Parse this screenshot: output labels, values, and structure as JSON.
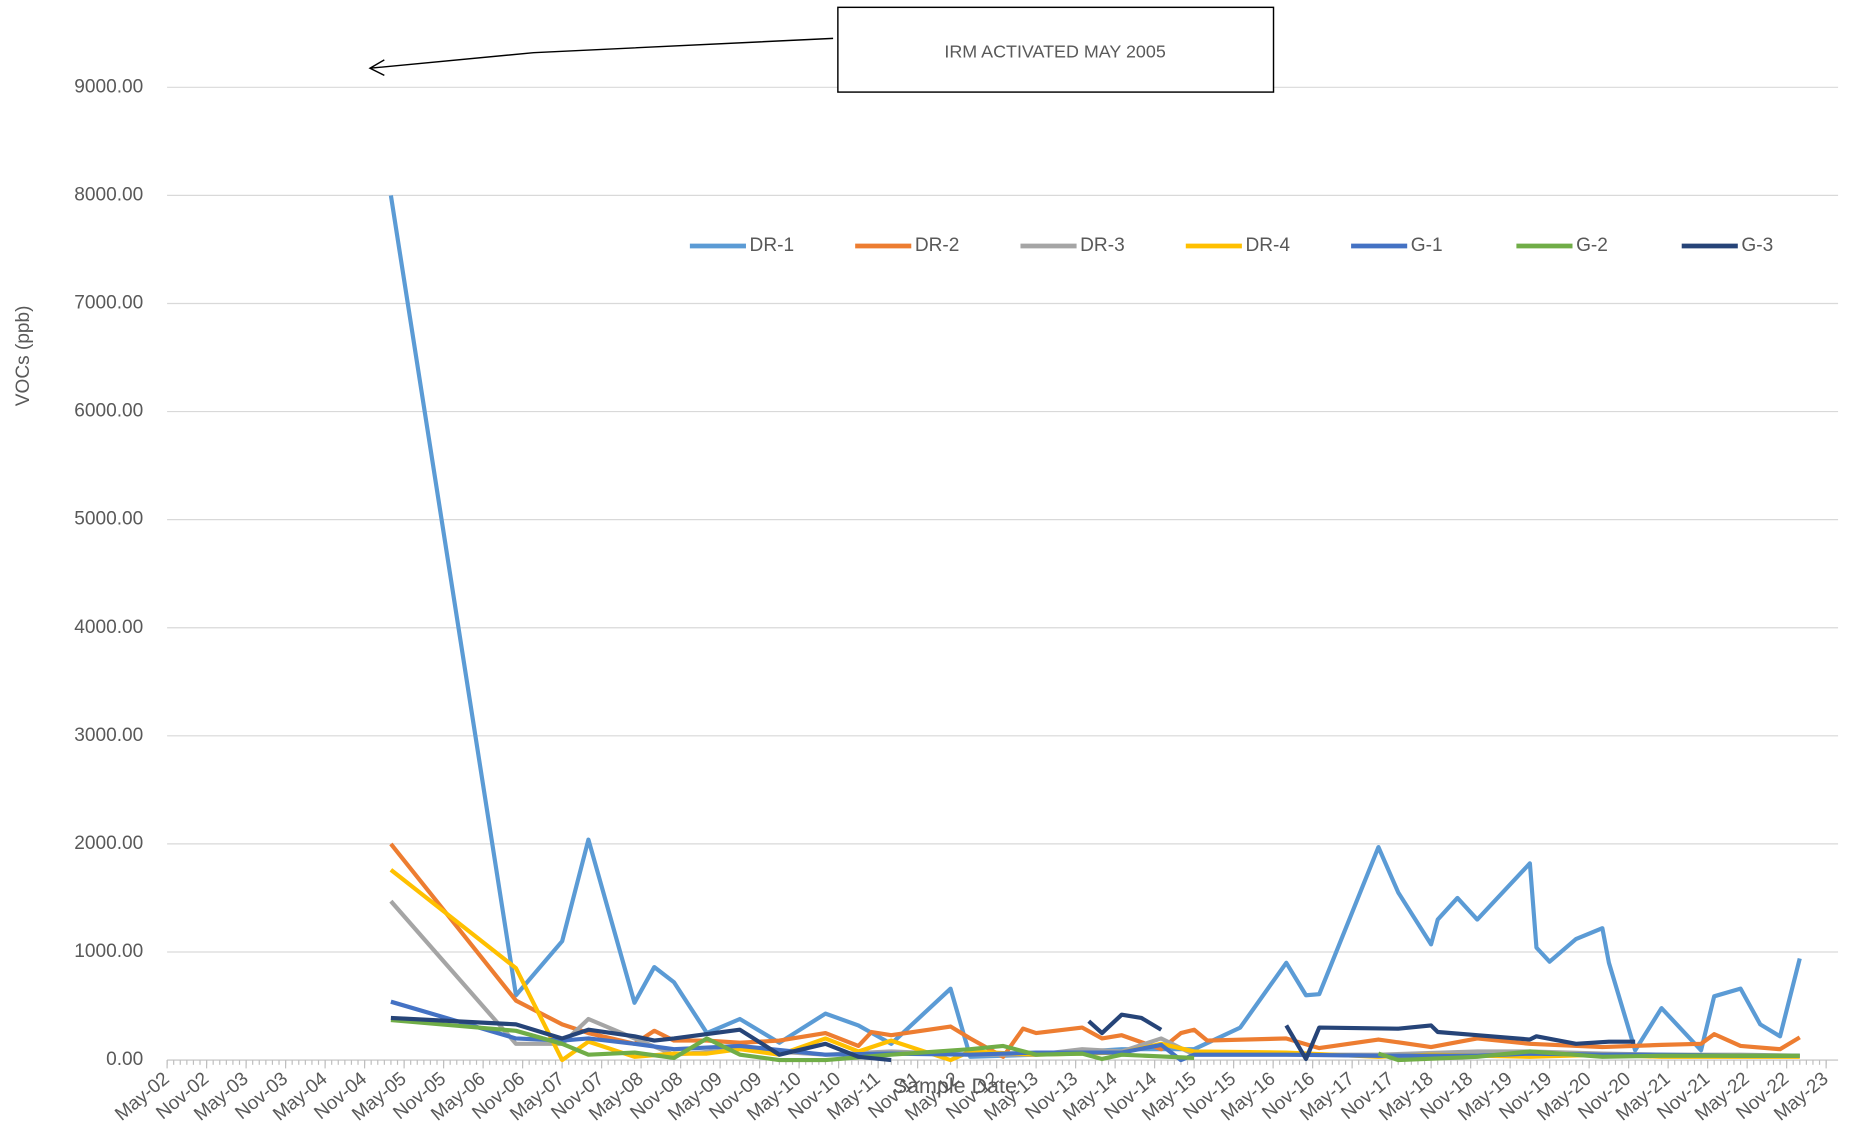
{
  "chart_data": {
    "type": "line",
    "annotation": "IRM ACTIVATED MAY 2005",
    "x_label": "Sample Date",
    "y_label": "VOCs (ppb)",
    "ylim": [
      0,
      9000
    ],
    "yticks": [
      {
        "value": 0,
        "label": "0.00"
      },
      {
        "value": 1000,
        "label": "1000.00"
      },
      {
        "value": 2000,
        "label": "2000.00"
      },
      {
        "value": 3000,
        "label": "3000.00"
      },
      {
        "value": 4000,
        "label": "4000.00"
      },
      {
        "value": 5000,
        "label": "5000.00"
      },
      {
        "value": 6000,
        "label": "6000.00"
      },
      {
        "value": 7000,
        "label": "7000.00"
      },
      {
        "value": 8000,
        "label": "8000.00"
      },
      {
        "value": 9000,
        "label": "9000.00"
      }
    ],
    "xlim": [
      "2002-05",
      "2023-05"
    ],
    "xticks": [
      {
        "value": "2002-05",
        "label": "May-02"
      },
      {
        "value": "2002-11",
        "label": "Nov-02"
      },
      {
        "value": "2003-05",
        "label": "May-03"
      },
      {
        "value": "2003-11",
        "label": "Nov-03"
      },
      {
        "value": "2004-05",
        "label": "May-04"
      },
      {
        "value": "2004-11",
        "label": "Nov-04"
      },
      {
        "value": "2005-05",
        "label": "May-05"
      },
      {
        "value": "2005-11",
        "label": "Nov-05"
      },
      {
        "value": "2006-05",
        "label": "May-06"
      },
      {
        "value": "2006-11",
        "label": "Nov-06"
      },
      {
        "value": "2007-05",
        "label": "May-07"
      },
      {
        "value": "2007-11",
        "label": "Nov-07"
      },
      {
        "value": "2008-05",
        "label": "May-08"
      },
      {
        "value": "2008-11",
        "label": "Nov-08"
      },
      {
        "value": "2009-05",
        "label": "May-09"
      },
      {
        "value": "2009-11",
        "label": "Nov-09"
      },
      {
        "value": "2010-05",
        "label": "May-10"
      },
      {
        "value": "2010-11",
        "label": "Nov-10"
      },
      {
        "value": "2011-05",
        "label": "May-11"
      },
      {
        "value": "2011-11",
        "label": "Nov-11"
      },
      {
        "value": "2012-05",
        "label": "May-12"
      },
      {
        "value": "2012-11",
        "label": "Nov-12"
      },
      {
        "value": "2013-05",
        "label": "May-13"
      },
      {
        "value": "2013-11",
        "label": "Nov-13"
      },
      {
        "value": "2014-05",
        "label": "May-14"
      },
      {
        "value": "2014-11",
        "label": "Nov-14"
      },
      {
        "value": "2015-05",
        "label": "May-15"
      },
      {
        "value": "2015-11",
        "label": "Nov-15"
      },
      {
        "value": "2016-05",
        "label": "May-16"
      },
      {
        "value": "2016-11",
        "label": "Nov-16"
      },
      {
        "value": "2017-05",
        "label": "May-17"
      },
      {
        "value": "2017-11",
        "label": "Nov-17"
      },
      {
        "value": "2018-05",
        "label": "May-18"
      },
      {
        "value": "2018-11",
        "label": "Nov-18"
      },
      {
        "value": "2019-05",
        "label": "May-19"
      },
      {
        "value": "2019-11",
        "label": "Nov-19"
      },
      {
        "value": "2020-05",
        "label": "May-20"
      },
      {
        "value": "2020-11",
        "label": "Nov-20"
      },
      {
        "value": "2021-05",
        "label": "May-21"
      },
      {
        "value": "2021-11",
        "label": "Nov-21"
      },
      {
        "value": "2022-05",
        "label": "May-22"
      },
      {
        "value": "2022-11",
        "label": "Nov-22"
      },
      {
        "value": "2023-05",
        "label": "May-23"
      }
    ],
    "grid": true,
    "legend": "top",
    "series": [
      {
        "name": "DR-1",
        "color": "#5b9bd5",
        "x": [
          "2005-03",
          "2006-10",
          "2007-05",
          "2007-09",
          "2008-04",
          "2008-07",
          "2008-10",
          "2009-03",
          "2009-08",
          "2010-02",
          "2010-09",
          "2011-02",
          "2011-07",
          "2012-04",
          "2012-07",
          "2013-05",
          "2014-06",
          "2015-05",
          "2015-12",
          "2016-07",
          "2016-10",
          "2016-12",
          "2017-09",
          "2017-12",
          "2018-05",
          "2018-06",
          "2018-09",
          "2018-12",
          "2019-08",
          "2019-09",
          "2019-11",
          "2020-03",
          "2020-07",
          "2020-08",
          "2020-12",
          "2021-04",
          "2021-10",
          "2021-12",
          "2022-04",
          "2022-07",
          "2022-10",
          "2023-01"
        ],
        "values": [
          8000,
          600,
          1100,
          2040,
          530,
          860,
          720,
          250,
          380,
          160,
          430,
          320,
          150,
          660,
          30,
          50,
          100,
          100,
          300,
          900,
          600,
          610,
          1970,
          1550,
          1070,
          1300,
          1500,
          1300,
          1820,
          1040,
          910,
          1120,
          1220,
          900,
          90,
          480,
          90,
          590,
          660,
          330,
          220,
          940
        ]
      },
      {
        "name": "DR-2",
        "color": "#ed7d31",
        "x": [
          "2005-03",
          "2006-10",
          "2007-05",
          "2007-09",
          "2008-04",
          "2008-07",
          "2008-10",
          "2009-03",
          "2009-08",
          "2010-02",
          "2010-09",
          "2011-02",
          "2011-04",
          "2011-07",
          "2012-04",
          "2012-07",
          "2012-12",
          "2013-03",
          "2013-05",
          "2013-12",
          "2014-03",
          "2014-06",
          "2014-12",
          "2015-03",
          "2015-05",
          "2015-07",
          "2016-07",
          "2016-12",
          "2017-09",
          "2018-05",
          "2018-12",
          "2019-08",
          "2020-07",
          "2021-04",
          "2021-10",
          "2021-12",
          "2022-04",
          "2022-10",
          "2023-01"
        ],
        "values": [
          2000,
          550,
          330,
          250,
          150,
          270,
          180,
          180,
          160,
          180,
          250,
          130,
          260,
          230,
          310,
          200,
          30,
          290,
          250,
          300,
          200,
          230,
          100,
          250,
          280,
          180,
          200,
          110,
          190,
          120,
          200,
          150,
          120,
          140,
          150,
          240,
          130,
          100,
          210
        ]
      },
      {
        "name": "DR-3",
        "color": "#a5a5a5",
        "x": [
          "2005-03",
          "2006-10",
          "2007-05",
          "2007-09",
          "2008-04",
          "2008-10",
          "2009-08",
          "2010-09",
          "2011-07",
          "2012-07",
          "2013-05",
          "2013-12",
          "2014-06",
          "2014-12",
          "2015-05",
          "2016-07",
          "2017-09",
          "2018-12",
          "2019-08",
          "2020-07",
          "2021-04",
          "2022-04",
          "2023-01"
        ],
        "values": [
          1470,
          150,
          150,
          380,
          200,
          50,
          100,
          50,
          80,
          50,
          50,
          100,
          80,
          200,
          50,
          50,
          50,
          80,
          80,
          60,
          50,
          50,
          40
        ]
      },
      {
        "name": "DR-4",
        "color": "#ffc000",
        "x": [
          "2005-03",
          "2006-10",
          "2007-05",
          "2007-09",
          "2008-04",
          "2008-10",
          "2009-03",
          "2009-08",
          "2010-02",
          "2010-09",
          "2011-02",
          "2011-07",
          "2012-04",
          "2012-07",
          "2013-05",
          "2014-06",
          "2014-12",
          "2015-05",
          "2016-07",
          "2017-09",
          "2018-05",
          "2019-08",
          "2020-07",
          "2021-04",
          "2022-04",
          "2023-01"
        ],
        "values": [
          1760,
          850,
          0,
          170,
          30,
          60,
          60,
          100,
          50,
          200,
          80,
          180,
          0,
          80,
          50,
          70,
          150,
          80,
          70,
          30,
          50,
          30,
          50,
          30,
          30,
          30
        ]
      },
      {
        "name": "G-1",
        "color": "#4472c4",
        "x": [
          "2005-03",
          "2006-10",
          "2007-05",
          "2007-09",
          "2008-04",
          "2008-10",
          "2009-08",
          "2010-09",
          "2011-07",
          "2012-07",
          "2013-05",
          "2014-06",
          "2014-12",
          "2015-03",
          "2015-05",
          "2016-07",
          "2017-09",
          "2018-12",
          "2019-08",
          "2020-07",
          "2021-04",
          "2022-04",
          "2023-01"
        ],
        "values": [
          540,
          200,
          180,
          200,
          150,
          100,
          130,
          50,
          60,
          50,
          70,
          70,
          140,
          0,
          50,
          50,
          40,
          40,
          60,
          50,
          50,
          40,
          40
        ]
      },
      {
        "name": "G-2",
        "color": "#70ad47",
        "x": [
          "2005-03",
          "2006-10",
          "2007-05",
          "2007-09",
          "2008-04",
          "2008-10",
          "2009-03",
          "2009-08",
          "2010-02",
          "2010-09",
          "2011-07",
          "2012-07",
          "2012-12",
          "2013-05",
          "2013-12",
          "2014-03",
          "2014-06",
          "2015-05",
          "2016-07",
          "2017-09",
          "2017-12",
          "2018-12",
          "2019-08",
          "2020-07",
          "2021-04",
          "2022-04",
          "2023-01"
        ],
        "values": [
          370,
          270,
          150,
          50,
          70,
          20,
          200,
          50,
          0,
          0,
          50,
          100,
          130,
          50,
          60,
          10,
          50,
          20,
          null,
          60,
          0,
          30,
          80,
          30,
          40,
          40,
          40
        ]
      },
      {
        "name": "G-3",
        "color": "#264478",
        "x": [
          "2005-03",
          "2006-10",
          "2007-05",
          "2007-09",
          "2008-04",
          "2008-07",
          "2008-10",
          "2009-08",
          "2010-02",
          "2010-09",
          "2011-02",
          "2011-07",
          "2012-07",
          "2014-01",
          "2014-03",
          "2014-06",
          "2014-09",
          "2014-12",
          "2015-05",
          "2016-07",
          "2016-10",
          "2016-12",
          "2017-12",
          "2018-05",
          "2018-06",
          "2018-12",
          "2019-08",
          "2019-09",
          "2020-03",
          "2020-08",
          "2020-12"
        ],
        "values": [
          390,
          330,
          200,
          280,
          220,
          180,
          200,
          280,
          50,
          150,
          30,
          0,
          null,
          360,
          250,
          420,
          390,
          280,
          null,
          320,
          10,
          300,
          290,
          320,
          260,
          230,
          190,
          220,
          150,
          170,
          170
        ]
      }
    ]
  }
}
